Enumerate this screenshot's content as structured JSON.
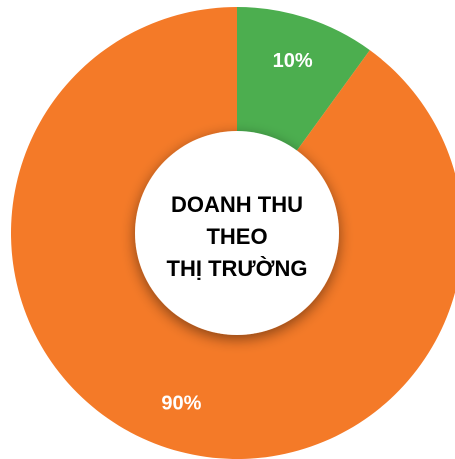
{
  "chart_data": {
    "type": "donut",
    "title": [
      "DOANH THU",
      "THEO",
      "THỊ TRƯỜNG"
    ],
    "values": [
      10,
      90
    ],
    "value_labels": [
      "10%",
      "90%"
    ],
    "colors": [
      "#4cae4f",
      "#f47a28"
    ],
    "start_angle": 0,
    "direction": "clockwise"
  }
}
